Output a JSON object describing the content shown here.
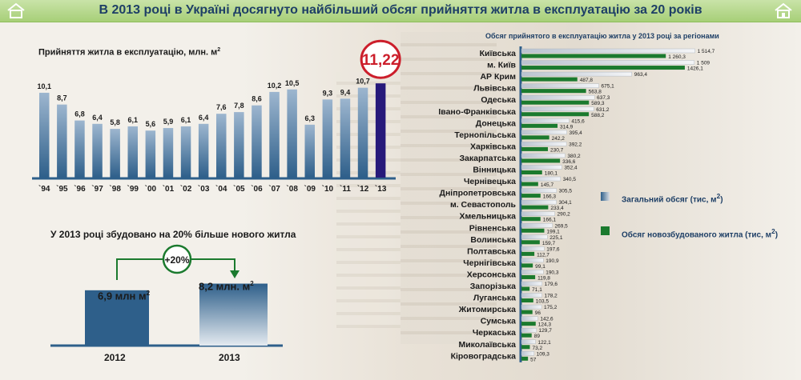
{
  "title": "В 2013 році в Україні досягнуто найбільший обсяг прийняття житла в експлуатацію за 20 років",
  "left_chart_title": "Прийняття житла в експлуатацію, млн. м",
  "left_chart_title_sup": "2",
  "right_chart_title": "Обсяг прийнятого в експлуатацію житла у 2013 році за регіонами",
  "growth_title": "У 2013 році збудовано на 20% більше нового житла",
  "growth_badge": "+20%",
  "growth_2012_value": "6,9 млн м",
  "growth_2013_value": "8,2 млн. м",
  "growth_sup": "2",
  "growth_2012_year": "2012",
  "growth_2013_year": "2013",
  "growth_values": [
    6.9,
    8.2
  ],
  "legend": {
    "total": "Загальний обсяг (тис, м",
    "total_sup": "2",
    "total_close": ")",
    "new": "Обсяг новозбудованого житла (тис, м",
    "new_sup": "2",
    "new_close": ")"
  },
  "colors": {
    "bar_blue": "#2e5f8a",
    "bar_highlight": "#27197a",
    "highlight_circle": "#cc1e2b",
    "green": "#1b7a2e",
    "light_bar": "#d9dde3",
    "title_blue": "#1e3f66"
  },
  "chart_data": [
    {
      "type": "bar",
      "title": "Прийняття житла в експлуатацію, млн. м2",
      "categories": [
        "`94",
        "`95",
        "`96",
        "`97",
        "`98",
        "`99",
        "`00",
        "`01",
        "`02",
        "`03",
        "`04",
        "`05",
        "`06",
        "`07",
        "`08",
        "`09",
        "`10",
        "`11",
        "`12",
        "`13"
      ],
      "values": [
        10.1,
        8.7,
        6.8,
        6.4,
        5.8,
        6.1,
        5.6,
        5.9,
        6.1,
        6.4,
        7.6,
        7.8,
        8.6,
        10.2,
        10.5,
        6.3,
        9.3,
        9.4,
        10.7,
        11.22
      ],
      "labels": [
        "10,1",
        "8,7",
        "6,8",
        "6,4",
        "5,8",
        "6,1",
        "5,6",
        "5,9",
        "6,1",
        "6,4",
        "7,6",
        "7,8",
        "8,6",
        "10,2",
        "10,5",
        "6,3",
        "9,3",
        "9,4",
        "10,7",
        "11,22"
      ],
      "highlight": "`13"
    },
    {
      "type": "bar",
      "title": "Обсяг прийнятого в експлуатацію житла у 2013 році за регіонами",
      "orientation": "horizontal",
      "categories": [
        "Київська",
        "м. Київ",
        "АР Крим",
        "Львівська",
        "Одеська",
        "Івано-Франківська",
        "Донецька",
        "Тернопільська",
        "Харківська",
        "Закарпатська",
        "Вінницька",
        "Чернівецька",
        "Дніпропетровська",
        "м. Севастополь",
        "Хмельницька",
        "Рівненська",
        "Волинська",
        "Полтавська",
        "Чернігівська",
        "Херсонська",
        "Запорізька",
        "Луганська",
        "Житомирська",
        "Сумська",
        "Черкаська",
        "Миколаївська",
        "Кіровоградська"
      ],
      "series": [
        {
          "name": "Загальний обсяг (тис, м2)",
          "values": [
            1514.7,
            1509,
            963.4,
            675.1,
            637.3,
            631.2,
            415.6,
            395.4,
            392.2,
            380.2,
            352.4,
            340.5,
            305.5,
            304.1,
            290.2,
            269.5,
            225.1,
            197.6,
            190.9,
            190.3,
            179.6,
            178.2,
            175.2,
            142.6,
            129.7,
            122.1,
            109.3
          ],
          "labels": [
            "1 514,7",
            "1 509",
            "963,4",
            "675,1",
            "637,3",
            "631,2",
            "415,6",
            "395,4",
            "392,2",
            "380,2",
            "352,4",
            "340,5",
            "305,5",
            "304,1",
            "290,2",
            "269,5",
            "225,1",
            "197,6",
            "190,9",
            "190,3",
            "179,6",
            "178,2",
            "175,2",
            "142,6",
            "129,7",
            "122,1",
            "109,3"
          ]
        },
        {
          "name": "Обсяг новозбудованого житла (тис, м2)",
          "values": [
            1260.3,
            1426.1,
            487.8,
            563.8,
            589.3,
            588.2,
            314.9,
            242.2,
            230.7,
            336.6,
            180.1,
            145.7,
            166.3,
            233.4,
            166.1,
            199.1,
            159.7,
            112.7,
            99.1,
            119.8,
            71.1,
            103.5,
            96,
            124.3,
            89,
            73.2,
            57
          ],
          "labels": [
            "1 260,3",
            "1426,1",
            "487,8",
            "563,8",
            "589,3",
            "588,2",
            "314,9",
            "242,2",
            "230,7",
            "336,6",
            "180,1",
            "145,7",
            "166,3",
            "233,4",
            "166,1",
            "199,1",
            "159,7",
            "112,7",
            "99,1",
            "119,8",
            "71,1",
            "103,5",
            "96",
            "124,3",
            "89",
            "73,2",
            "57"
          ]
        }
      ]
    }
  ]
}
